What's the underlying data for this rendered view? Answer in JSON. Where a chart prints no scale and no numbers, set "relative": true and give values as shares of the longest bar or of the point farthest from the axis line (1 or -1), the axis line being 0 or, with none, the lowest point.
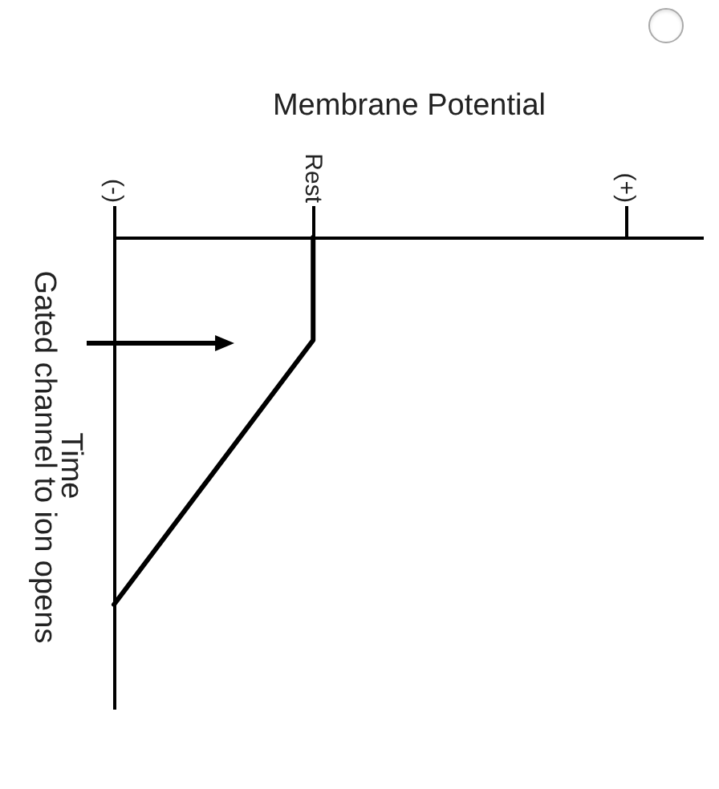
{
  "chart_data": {
    "type": "line",
    "xlabel": "Membrane Potential",
    "ylabel": "Time",
    "relative": true,
    "categories": [
      "(-)",
      null,
      null,
      null,
      null,
      null,
      null,
      "Rest",
      null,
      null,
      null,
      null,
      null,
      null,
      null,
      null,
      null,
      null,
      "(+)",
      null,
      null
    ],
    "series": [
      {
        "color": "#000000",
        "x": [
          "Rest",
          "Rest",
          "(-)"
        ],
        "values": [
          0,
          -0.28,
          -1
        ]
      }
    ],
    "tick_labels": "x",
    "annotations": [
      "Gated channel to ion opens"
    ]
  }
}
